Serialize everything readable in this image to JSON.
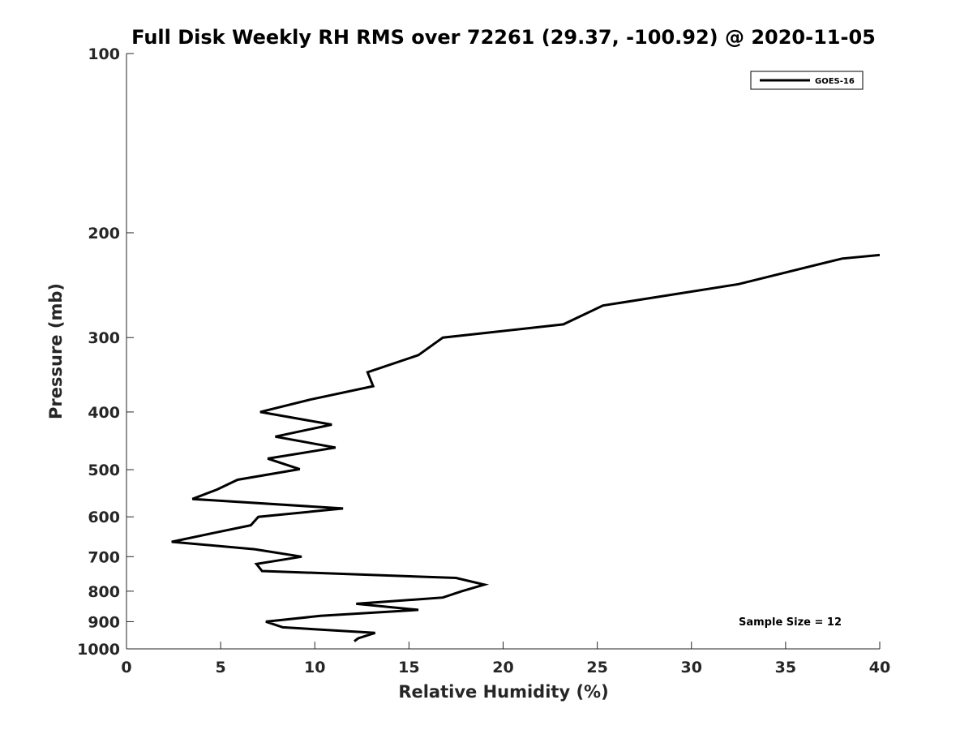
{
  "chart_data": {
    "type": "line",
    "title": "Full Disk Weekly RH RMS over 72261 (29.37, -100.92) @ 2020-11-05",
    "xlabel": "Relative Humidity (%)",
    "ylabel": "Pressure (mb)",
    "xlim": [
      0,
      40
    ],
    "ylim": [
      100,
      1000
    ],
    "yscale": "log",
    "yreversed": true,
    "grid": false,
    "legend_position": "top-right",
    "xticks": [
      0,
      5,
      10,
      15,
      20,
      25,
      30,
      35,
      40
    ],
    "yticks": [
      100,
      200,
      300,
      400,
      500,
      600,
      700,
      800,
      900,
      1000
    ],
    "annotation": "Sample Size = 12",
    "series": [
      {
        "name": "GOES-16",
        "color": "#000000",
        "points": [
          [
            40.0,
            218
          ],
          [
            38.0,
            221
          ],
          [
            32.5,
            244
          ],
          [
            25.3,
            265
          ],
          [
            23.2,
            285
          ],
          [
            16.8,
            300
          ],
          [
            15.5,
            321
          ],
          [
            12.8,
            343
          ],
          [
            13.1,
            362
          ],
          [
            9.8,
            381
          ],
          [
            7.1,
            400
          ],
          [
            10.9,
            420
          ],
          [
            7.9,
            440
          ],
          [
            11.1,
            459
          ],
          [
            7.5,
            479
          ],
          [
            9.2,
            499
          ],
          [
            5.9,
            520
          ],
          [
            4.8,
            540
          ],
          [
            3.5,
            560
          ],
          [
            11.5,
            581
          ],
          [
            7.0,
            600
          ],
          [
            6.6,
            620
          ],
          [
            4.5,
            640
          ],
          [
            2.4,
            661
          ],
          [
            6.8,
            680
          ],
          [
            9.3,
            700
          ],
          [
            6.9,
            720
          ],
          [
            7.2,
            740
          ],
          [
            17.5,
            760
          ],
          [
            19.0,
            780
          ],
          [
            17.8,
            800
          ],
          [
            16.8,
            820
          ],
          [
            12.2,
            840
          ],
          [
            15.5,
            860
          ],
          [
            10.3,
            880
          ],
          [
            7.4,
            900
          ],
          [
            8.3,
            920
          ],
          [
            13.2,
            940
          ],
          [
            12.3,
            960
          ],
          [
            12.1,
            971
          ]
        ]
      }
    ]
  }
}
